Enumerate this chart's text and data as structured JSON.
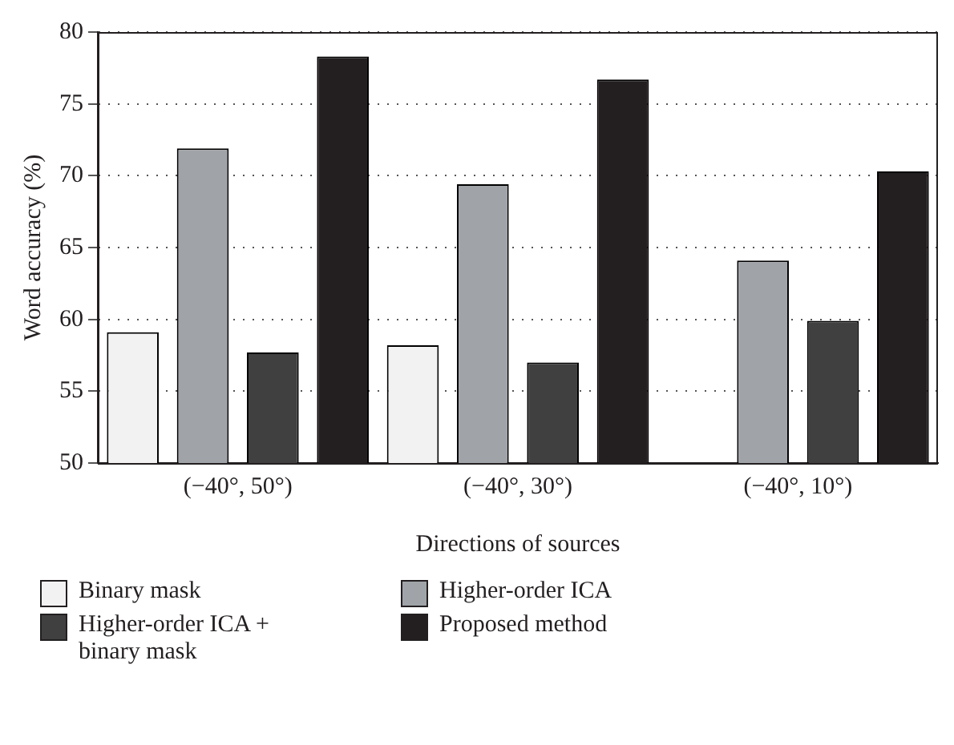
{
  "chart_data": {
    "type": "bar",
    "xlabel": "Directions of sources",
    "ylabel": "Word accuracy (%)",
    "categories": [
      "(−40°, 50°)",
      "(−40°, 30°)",
      "(−40°, 10°)"
    ],
    "series": [
      {
        "name": "Binary mask",
        "color": "#f2f2f2",
        "values": [
          59.1,
          58.2,
          null
        ]
      },
      {
        "name": "Higher-order ICA",
        "color": "#a0a4a8",
        "values": [
          71.9,
          69.4,
          64.1
        ]
      },
      {
        "name": "Higher-order ICA + binary mask",
        "color": "#404040",
        "values": [
          57.7,
          57.0,
          59.9
        ]
      },
      {
        "name": "Proposed method",
        "color": "#231f20",
        "values": [
          78.3,
          76.7,
          70.3
        ]
      }
    ],
    "ylim": [
      50,
      80
    ],
    "yticks": [
      50,
      55,
      60,
      65,
      70,
      75,
      80
    ],
    "grid": "y",
    "legend": "bottom"
  }
}
